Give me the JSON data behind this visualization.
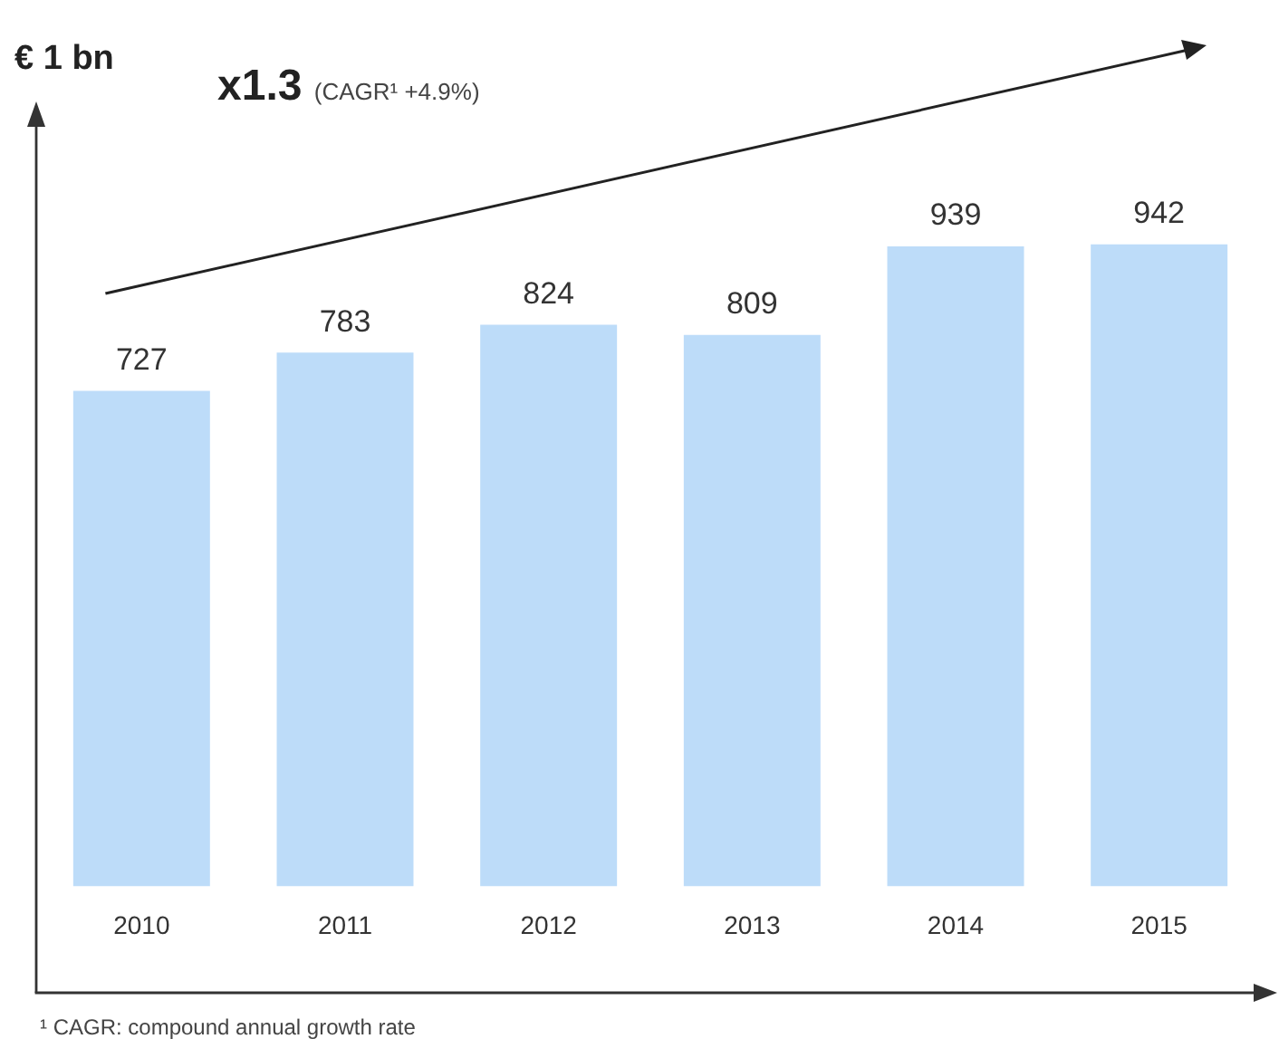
{
  "chart_data": {
    "type": "bar",
    "ylabel": "€ 1 bn",
    "categories": [
      "2010",
      "2011",
      "2012",
      "2013",
      "2014",
      "2015"
    ],
    "values": [
      727,
      783,
      824,
      809,
      939,
      942
    ],
    "color": "#bddcf9",
    "data_labels": true,
    "grid": false,
    "legend": false,
    "annotations": [
      "x1.3 (CAGR¹ +4.9%)",
      "¹ CAGR: compound annual growth rate"
    ]
  }
}
